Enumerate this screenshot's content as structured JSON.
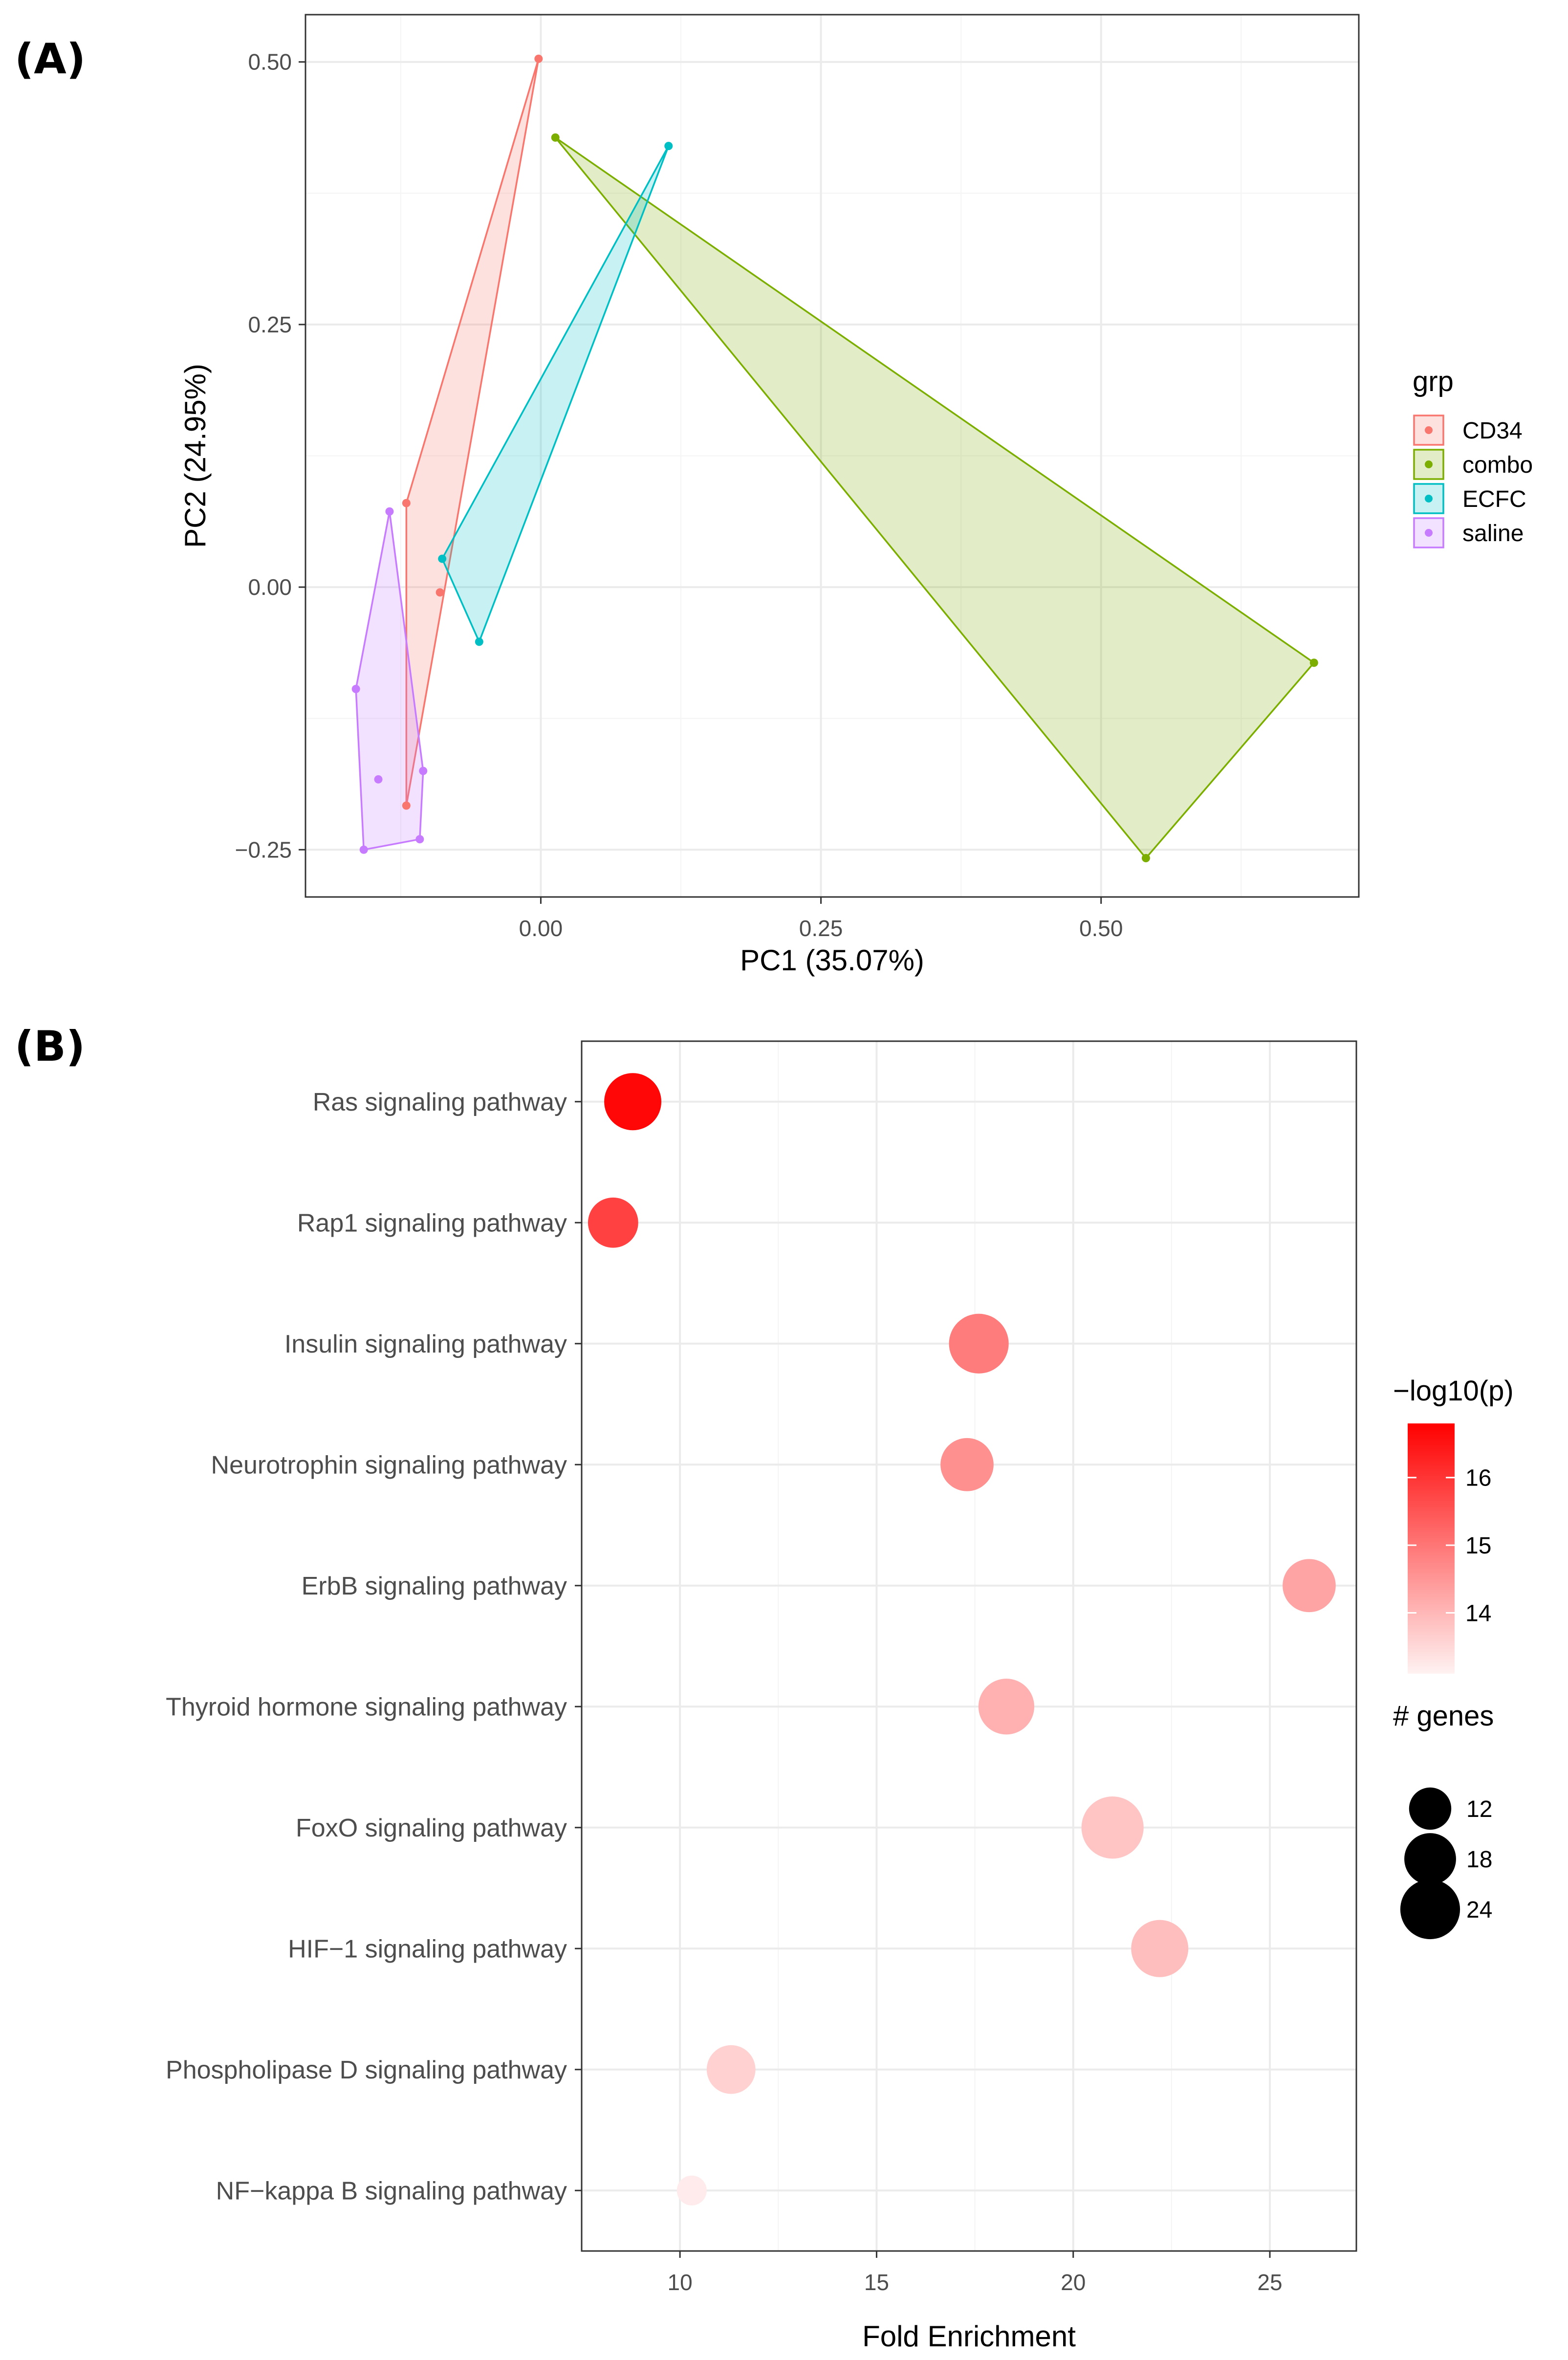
{
  "panel_a": {
    "label": "(A)"
  },
  "panel_b": {
    "label": "(B)"
  },
  "colors": {
    "CD34": "#F8766D",
    "combo": "#7CAE00",
    "ECFC": "#00BFC4",
    "saline": "#C77CFF",
    "pvalue_low": "#FFF2F2",
    "pvalue_high": "#FF0000"
  },
  "chart_data": [
    {
      "id": "pca",
      "type": "scatter",
      "title": "",
      "xlabel": "PC1 (35.07%)",
      "ylabel": "PC2 (24.95%)",
      "xlim": [
        -0.21,
        0.73
      ],
      "ylim": [
        -0.295,
        0.545
      ],
      "x_ticks": [
        0.0,
        0.25,
        0.5
      ],
      "x_tick_labels": [
        "0.00",
        "0.25",
        "0.50"
      ],
      "y_ticks": [
        -0.25,
        0.0,
        0.25,
        0.5
      ],
      "y_tick_labels": [
        "−0.25",
        "0.00",
        "0.25",
        "0.50"
      ],
      "grid": true,
      "legend": {
        "title": "grp",
        "position": "right",
        "entries": [
          "CD34",
          "combo",
          "ECFC",
          "saline"
        ]
      },
      "series": [
        {
          "name": "CD34",
          "x": [
            -0.002,
            -0.12,
            -0.12,
            -0.09
          ],
          "y": [
            0.503,
            0.08,
            -0.208,
            -0.005
          ]
        },
        {
          "name": "combo",
          "x": [
            0.013,
            0.69,
            0.54
          ],
          "y": [
            0.428,
            -0.072,
            -0.258
          ]
        },
        {
          "name": "ECFC",
          "x": [
            0.114,
            -0.088,
            -0.055
          ],
          "y": [
            0.42,
            0.027,
            -0.052
          ]
        },
        {
          "name": "saline",
          "x": [
            -0.135,
            -0.165,
            -0.145,
            -0.158,
            -0.108,
            -0.105
          ],
          "y": [
            0.072,
            -0.097,
            -0.183,
            -0.25,
            -0.24,
            -0.175
          ]
        }
      ]
    },
    {
      "id": "enrichment",
      "type": "scatter",
      "title": "",
      "xlabel": "Fold Enrichment",
      "ylabel": "",
      "xlim": [
        7.5,
        27.2
      ],
      "x_ticks": [
        10,
        15,
        20,
        25
      ],
      "x_tick_labels": [
        "10",
        "15",
        "20",
        "25"
      ],
      "grid": true,
      "categories": [
        "Ras signaling pathway",
        "Rap1 signaling pathway",
        "Insulin signaling pathway",
        "Neurotrophin signaling pathway",
        "ErbB signaling pathway",
        "Thyroid hormone signaling pathway",
        "FoxO signaling pathway",
        "HIF−1 signaling pathway",
        "Phospholipase D signaling pathway",
        "NF−kappa B signaling pathway"
      ],
      "fold_enrichment": [
        8.8,
        8.3,
        17.6,
        17.3,
        26.0,
        18.3,
        21.0,
        22.2,
        11.3,
        10.3
      ],
      "neg_log10_p": [
        16.7,
        15.8,
        14.9,
        14.6,
        14.3,
        14.1,
        13.8,
        13.9,
        13.6,
        13.2
      ],
      "genes": [
        22,
        17,
        24,
        19,
        19,
        21,
        26,
        22,
        16,
        6
      ],
      "color_legend": {
        "title": "−log10(p)",
        "range": [
          13.1,
          16.8
        ],
        "ticks": [
          14,
          15,
          16
        ],
        "tick_labels": [
          "14",
          "15",
          "16"
        ]
      },
      "size_legend": {
        "title": "# genes",
        "values": [
          12,
          18,
          24
        ],
        "labels": [
          "12",
          "18",
          "24"
        ]
      }
    }
  ]
}
